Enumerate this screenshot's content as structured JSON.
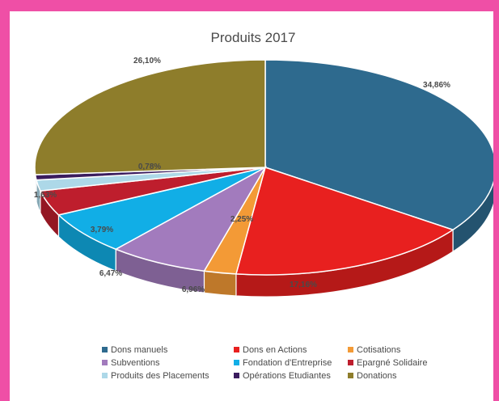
{
  "chart_data": {
    "type": "pie",
    "style": "3d",
    "title": "Produits 2017",
    "legend_position": "bottom",
    "slices": [
      {
        "label": "Dons manuels",
        "value": 34.86,
        "value_label": "34,86%",
        "color": "#2e6a8e"
      },
      {
        "label": "Dons en Actions",
        "value": 17.16,
        "value_label": "17,16%",
        "color": "#e8201f"
      },
      {
        "label": "Cotisations",
        "value": 2.25,
        "value_label": "2,25%",
        "color": "#f39a36"
      },
      {
        "label": "Subventions",
        "value": 6.96,
        "value_label": "6,96%",
        "color": "#a27bbd"
      },
      {
        "label": "Fondation d'Entreprise",
        "value": 6.47,
        "value_label": "6,47%",
        "color": "#11aee6"
      },
      {
        "label": "Epargné Solidaire",
        "value": 3.79,
        "value_label": "3,79%",
        "color": "#be1e2d"
      },
      {
        "label": "Produits des Placements",
        "value": 1.63,
        "value_label": "1,63%",
        "color": "#add8e8"
      },
      {
        "label": "Opérations Etudiantes",
        "value": 0.78,
        "value_label": "0,78%",
        "color": "#3a1c5e"
      },
      {
        "label": "Donations",
        "value": 26.1,
        "value_label": "26,10%",
        "color": "#8e7d2b"
      }
    ]
  }
}
